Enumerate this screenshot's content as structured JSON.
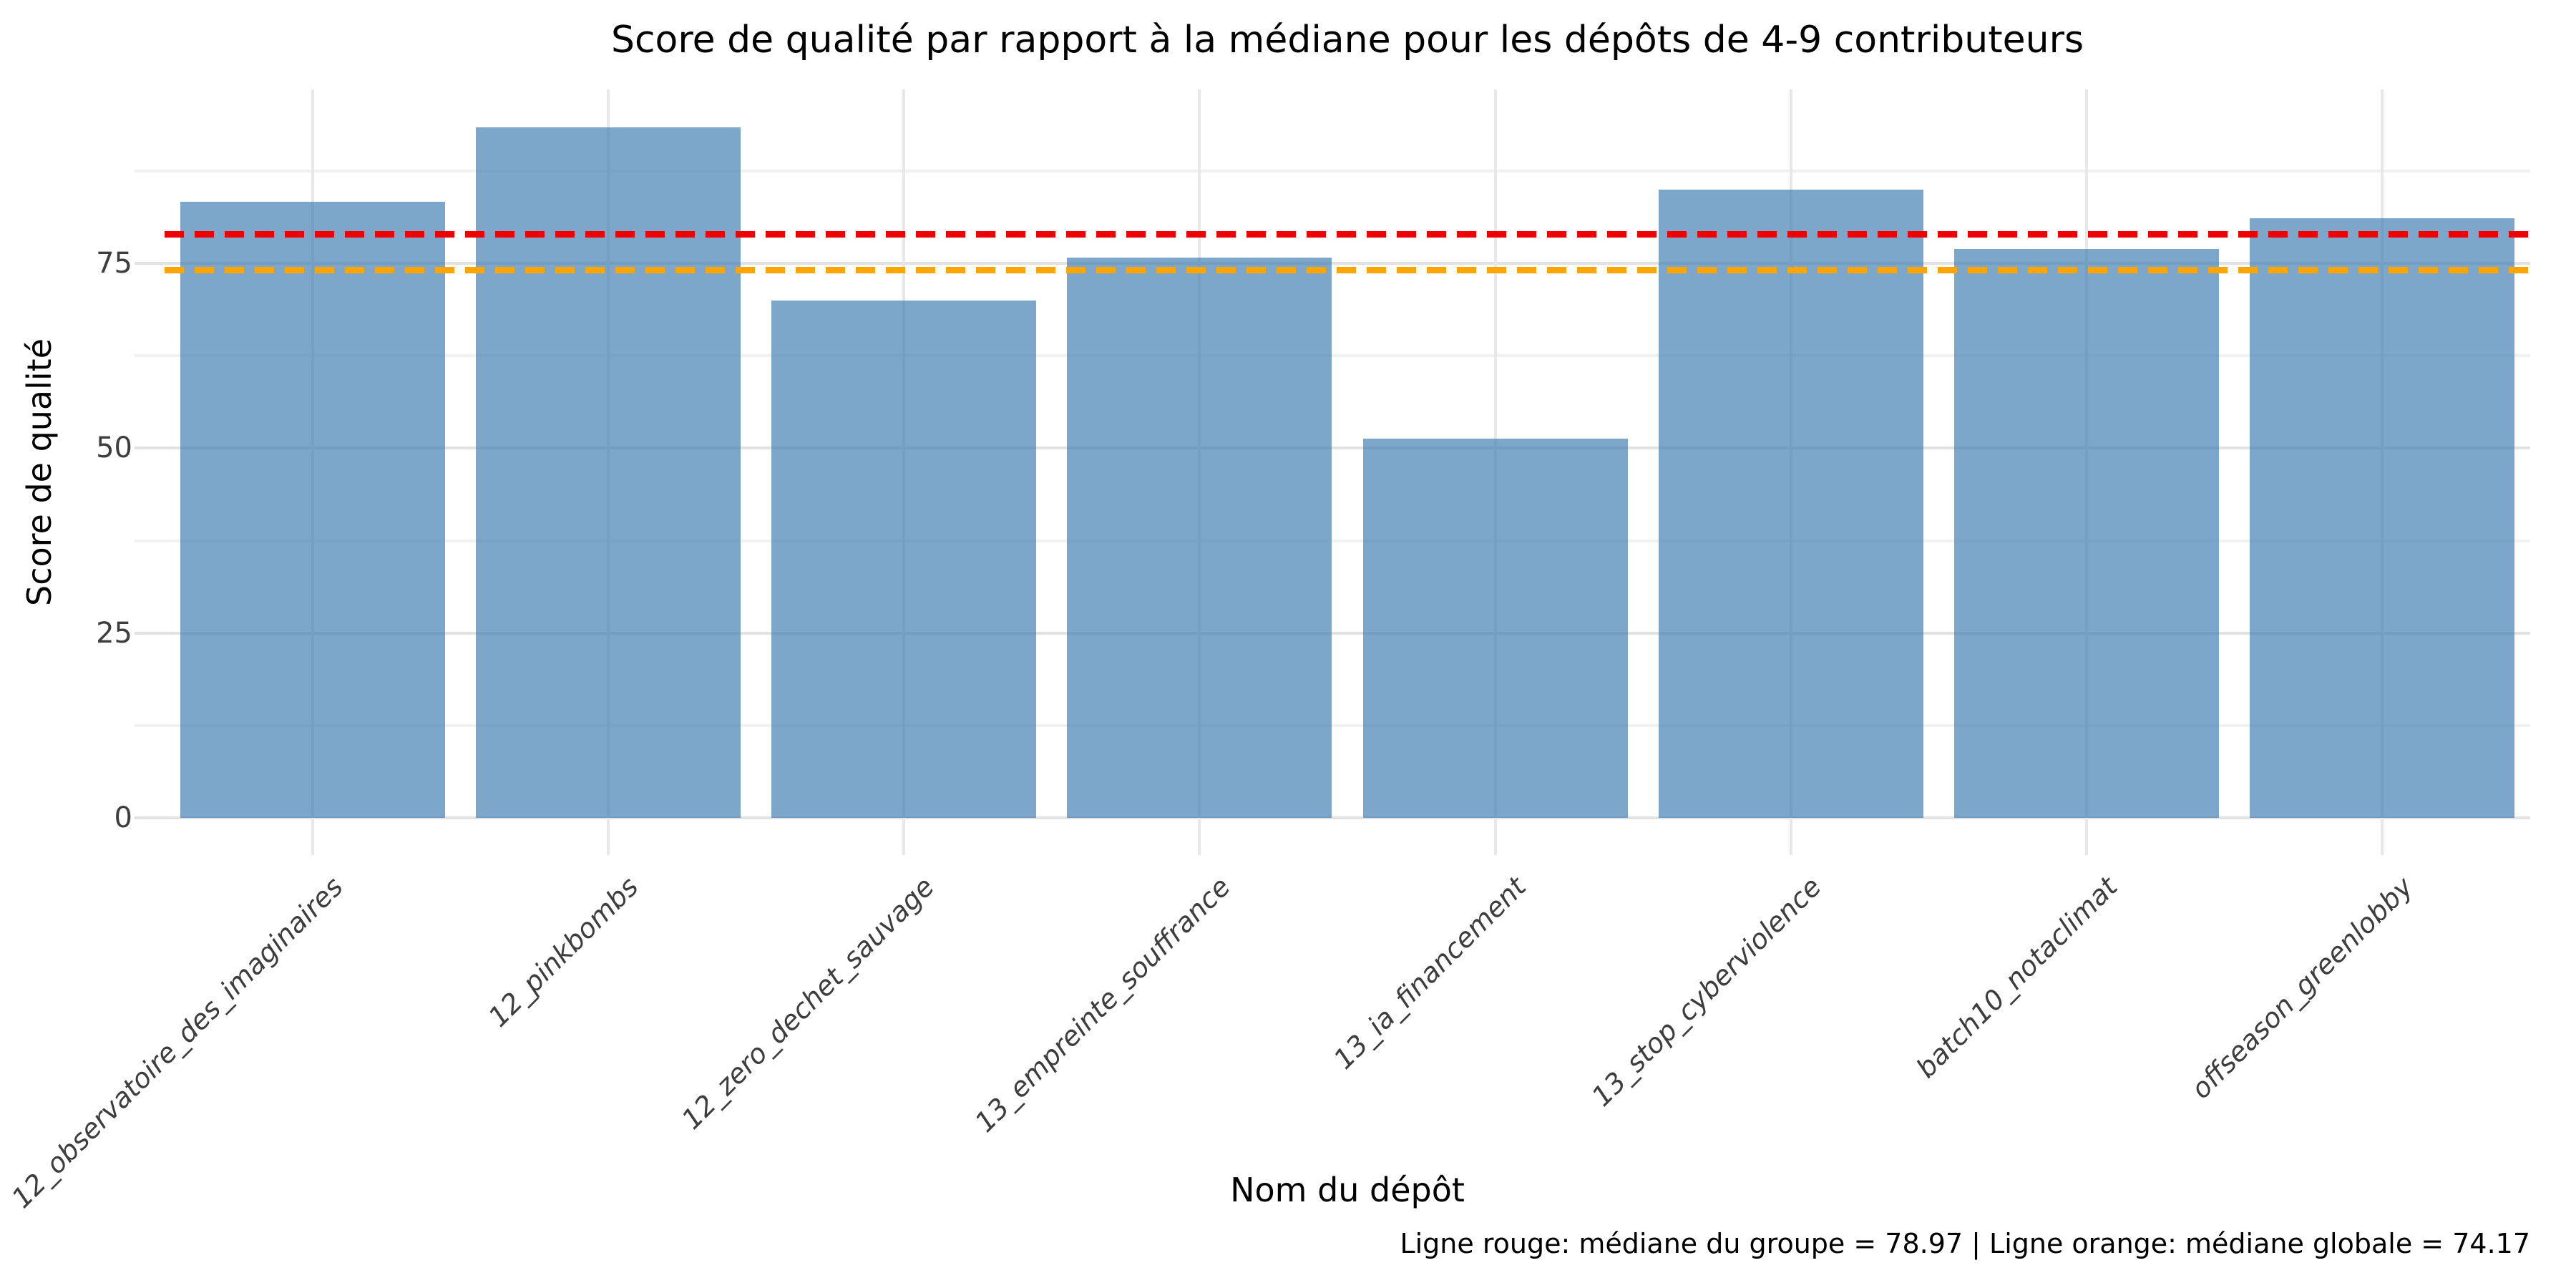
{
  "chart_data": {
    "type": "bar",
    "title": "Score de qualité par rapport à la médiane pour les dépôts de 4-9 contributeurs",
    "xlabel": "Nom du dépôt",
    "ylabel": "Score de qualité",
    "categories": [
      "12_observatoire_des_imaginaires",
      "12_pinkbombs",
      "12_zero_dechet_sauvage",
      "13_empreinte_souffrance",
      "13_ia_financement",
      "13_stop_cyberviolence",
      "batch10_notaclimat",
      "offseason_greenlobby"
    ],
    "values": [
      83.3,
      93.4,
      70.0,
      75.8,
      51.3,
      85.0,
      76.9,
      81.1
    ],
    "bar_color": "#4682B4",
    "bar_opacity": 0.7,
    "ylim": [
      -5,
      98.5
    ],
    "y_ticks": [
      0,
      25,
      50,
      75
    ],
    "y_tick_labels": [
      "0",
      "25",
      "50",
      "75"
    ],
    "y_minor_ticks": [
      12.5,
      37.5,
      62.5,
      87.5
    ],
    "grid": {
      "horizontal": "major+minor",
      "vertical": "at bar centers",
      "major_color": "#e2e2e2",
      "minor_color": "#f1f1f1"
    },
    "legend_position": "none",
    "reference_lines": [
      {
        "id": "median-group",
        "label": "médiane du groupe",
        "value": 78.97,
        "color": "#ee0000",
        "style": "dashed"
      },
      {
        "id": "median-global",
        "label": "médiane globale",
        "value": 74.17,
        "color": "#ffa500",
        "style": "dashed"
      }
    ],
    "caption": "Ligne rouge: médiane du groupe = 78.97 | Ligne orange: médiane globale = 74.17"
  }
}
